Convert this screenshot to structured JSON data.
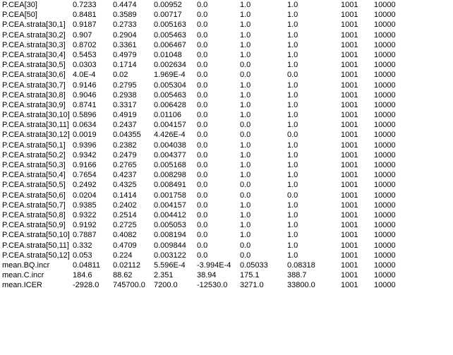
{
  "rows": [
    [
      "P.CEA[30]",
      "0.7233",
      "0.4474",
      "0.00952",
      "0.0",
      "1.0",
      "1.0",
      "1001",
      "10000"
    ],
    [
      "P.CEA[50]",
      "0.8481",
      "0.3589",
      "0.00717",
      "0.0",
      "1.0",
      "1.0",
      "1001",
      "10000"
    ],
    [
      "P.CEA.strata[30,1]",
      "0.9187",
      "0.2733",
      "0.005163",
      "0.0",
      "1.0",
      "1.0",
      "1001",
      "10000"
    ],
    [
      "P.CEA.strata[30,2]",
      "0.907",
      "0.2904",
      "0.005463",
      "0.0",
      "1.0",
      "1.0",
      "1001",
      "10000"
    ],
    [
      "P.CEA.strata[30,3]",
      "0.8702",
      "0.3361",
      "0.006467",
      "0.0",
      "1.0",
      "1.0",
      "1001",
      "10000"
    ],
    [
      "P.CEA.strata[30,4]",
      "0.5453",
      "0.4979",
      "0.01048",
      "0.0",
      "1.0",
      "1.0",
      "1001",
      "10000"
    ],
    [
      "P.CEA.strata[30,5]",
      "0.0303",
      "0.1714",
      "0.002634",
      "0.0",
      "0.0",
      "1.0",
      "1001",
      "10000"
    ],
    [
      "P.CEA.strata[30,6]",
      "4.0E-4",
      "0.02",
      "1.969E-4",
      "0.0",
      "0.0",
      "0.0",
      "1001",
      "10000"
    ],
    [
      "P.CEA.strata[30,7]",
      "0.9146",
      "0.2795",
      "0.005304",
      "0.0",
      "1.0",
      "1.0",
      "1001",
      "10000"
    ],
    [
      "P.CEA.strata[30,8]",
      "0.9046",
      "0.2938",
      "0.005463",
      "0.0",
      "1.0",
      "1.0",
      "1001",
      "10000"
    ],
    [
      "P.CEA.strata[30,9]",
      "0.8741",
      "0.3317",
      "0.006428",
      "0.0",
      "1.0",
      "1.0",
      "1001",
      "10000"
    ],
    [
      "P.CEA.strata[30,10]",
      "0.5896",
      "0.4919",
      "0.01106",
      "0.0",
      "1.0",
      "1.0",
      "1001",
      "10000"
    ],
    [
      "P.CEA.strata[30,11]",
      "0.0634",
      "0.2437",
      "0.004157",
      "0.0",
      "0.0",
      "1.0",
      "1001",
      "10000"
    ],
    [
      "P.CEA.strata[30,12]",
      "0.0019",
      "0.04355",
      "4.426E-4",
      "0.0",
      "0.0",
      "0.0",
      "1001",
      "10000"
    ],
    [
      "P.CEA.strata[50,1]",
      "0.9396",
      "0.2382",
      "0.004038",
      "0.0",
      "1.0",
      "1.0",
      "1001",
      "10000"
    ],
    [
      "P.CEA.strata[50,2]",
      "0.9342",
      "0.2479",
      "0.004377",
      "0.0",
      "1.0",
      "1.0",
      "1001",
      "10000"
    ],
    [
      "P.CEA.strata[50,3]",
      "0.9166",
      "0.2765",
      "0.005168",
      "0.0",
      "1.0",
      "1.0",
      "1001",
      "10000"
    ],
    [
      "P.CEA.strata[50,4]",
      "0.7654",
      "0.4237",
      "0.008298",
      "0.0",
      "1.0",
      "1.0",
      "1001",
      "10000"
    ],
    [
      "P.CEA.strata[50,5]",
      "0.2492",
      "0.4325",
      "0.008491",
      "0.0",
      "0.0",
      "1.0",
      "1001",
      "10000"
    ],
    [
      "P.CEA.strata[50,6]",
      "0.0204",
      "0.1414",
      "0.001758",
      "0.0",
      "0.0",
      "0.0",
      "1001",
      "10000"
    ],
    [
      "P.CEA.strata[50,7]",
      "0.9385",
      "0.2402",
      "0.004157",
      "0.0",
      "1.0",
      "1.0",
      "1001",
      "10000"
    ],
    [
      "P.CEA.strata[50,8]",
      "0.9322",
      "0.2514",
      "0.004412",
      "0.0",
      "1.0",
      "1.0",
      "1001",
      "10000"
    ],
    [
      "P.CEA.strata[50,9]",
      "0.9192",
      "0.2725",
      "0.005053",
      "0.0",
      "1.0",
      "1.0",
      "1001",
      "10000"
    ],
    [
      "P.CEA.strata[50,10]",
      "0.7887",
      "0.4082",
      "0.008194",
      "0.0",
      "1.0",
      "1.0",
      "1001",
      "10000"
    ],
    [
      "P.CEA.strata[50,11]",
      "0.332",
      "0.4709",
      "0.009844",
      "0.0",
      "0.0",
      "1.0",
      "1001",
      "10000"
    ],
    [
      "P.CEA.strata[50,12]",
      "0.053",
      "0.224",
      "0.003122",
      "0.0",
      "0.0",
      "1.0",
      "1001",
      "10000"
    ],
    [
      "mean.BQ.incr",
      "0.04811",
      "0.02112",
      "5.596E-4",
      "-3.994E-4",
      "0.05033",
      "0.08318",
      "1001",
      "10000"
    ],
    [
      "mean.C.incr",
      "184.6",
      "88.62",
      "2.351",
      "38.94",
      "175.1",
      "388.7",
      "1001",
      "10000"
    ],
    [
      "mean.ICER",
      "-2928.0",
      "745700.0",
      "7200.0",
      "-12530.0",
      "3271.0",
      "33800.0",
      "1001",
      "10000"
    ]
  ]
}
